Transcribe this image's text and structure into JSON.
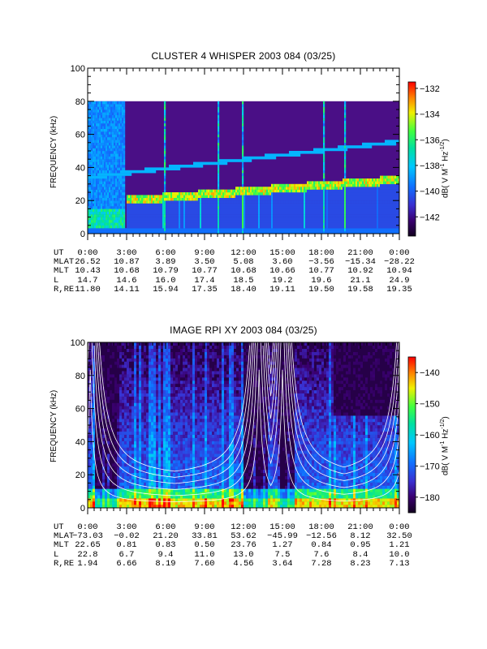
{
  "chart_data": [
    {
      "type": "heatmap",
      "title": "CLUSTER 4 WHISPER 2003 084 (03/25)",
      "ylabel": "FREQUENCY (kHz)",
      "xlabel": "",
      "ylim": [
        0,
        100
      ],
      "data_ylim": [
        0,
        80
      ],
      "y_ticks": [
        "0",
        "20",
        "40",
        "60",
        "80",
        "100"
      ],
      "colorbar": {
        "label": "dB( V M⁻¹ Hz⁻¹ᐟ²)",
        "label_text": "dB( V M",
        "label_sup1": "-1",
        "label_mid": " Hz",
        "label_sup2": "-1/2",
        "label_end": ")",
        "range": [
          -143.5,
          -131.5
        ],
        "ticks": [
          "-132",
          "-134",
          "-136",
          "-138",
          "-140",
          "-142"
        ]
      },
      "x_ticks": [
        "0:00",
        "3:00",
        "6:00",
        "9:00",
        "12:00",
        "15:00",
        "18:00",
        "21:00",
        "0:00"
      ],
      "ephemeris": [
        {
          "name": "UT",
          "values": [
            "0:00",
            "3:00",
            "6:00",
            "9:00",
            "12:00",
            "15:00",
            "18:00",
            "21:00",
            "0:00"
          ]
        },
        {
          "name": "MLAT",
          "values": [
            "26.52",
            "10.87",
            "3.89",
            "3.50",
            "5.08",
            "3.60",
            "−3.56",
            "−15.34",
            "−28.22"
          ]
        },
        {
          "name": "MLT",
          "values": [
            "10.43",
            "10.68",
            "10.79",
            "10.77",
            "10.68",
            "10.66",
            "10.77",
            "10.92",
            "10.94"
          ]
        },
        {
          "name": "L",
          "values": [
            "14.7",
            "14.6",
            "16.0",
            "17.4",
            "18.5",
            "19.2",
            "19.6",
            "21.1",
            "24.9"
          ]
        },
        {
          "name": "R,RE",
          "values": [
            "11.80",
            "14.11",
            "15.94",
            "17.35",
            "18.40",
            "19.11",
            "19.50",
            "19.58",
            "19.35"
          ]
        }
      ]
    },
    {
      "type": "heatmap",
      "title": "IMAGE RPI XY 2003 084 (03/25)",
      "ylabel": "FREQUENCY (kHz)",
      "xlabel": "",
      "ylim": [
        0,
        100
      ],
      "y_ticks": [
        "0",
        "20",
        "40",
        "60",
        "80",
        "100"
      ],
      "colorbar": {
        "label_text": "dB( V M",
        "label_sup1": "-1",
        "label_mid": " Hz",
        "label_sup2": "-1/2",
        "label_end": ")",
        "range": [
          -185,
          -135
        ],
        "ticks": [
          "-140",
          "-150",
          "-160",
          "-170",
          "-180"
        ]
      },
      "x_ticks": [
        "0:00",
        "3:00",
        "6:00",
        "9:00",
        "12:00",
        "15:00",
        "18:00",
        "21:00",
        "0:00"
      ],
      "ephemeris": [
        {
          "name": "UT",
          "values": [
            "0:00",
            "3:00",
            "6:00",
            "9:00",
            "12:00",
            "15:00",
            "18:00",
            "21:00",
            "0:00"
          ]
        },
        {
          "name": "MLAT",
          "values": [
            "−73.03",
            "−0.02",
            "21.20",
            "33.81",
            "53.62",
            "−45.99",
            "−12.56",
            "8.12",
            "32.50"
          ]
        },
        {
          "name": "MLT",
          "values": [
            "22.65",
            "0.81",
            "0.83",
            "0.50",
            "23.76",
            "1.27",
            "0.84",
            "0.95",
            "1.21"
          ]
        },
        {
          "name": "L",
          "values": [
            "22.8",
            "6.7",
            "9.4",
            "11.0",
            "13.0",
            "7.5",
            "7.6",
            "8.4",
            "10.0"
          ]
        },
        {
          "name": "R,RE",
          "values": [
            "1.94",
            "6.66",
            "8.19",
            "7.60",
            "4.56",
            "3.64",
            "7.28",
            "8.23",
            "7.13"
          ]
        }
      ]
    }
  ]
}
